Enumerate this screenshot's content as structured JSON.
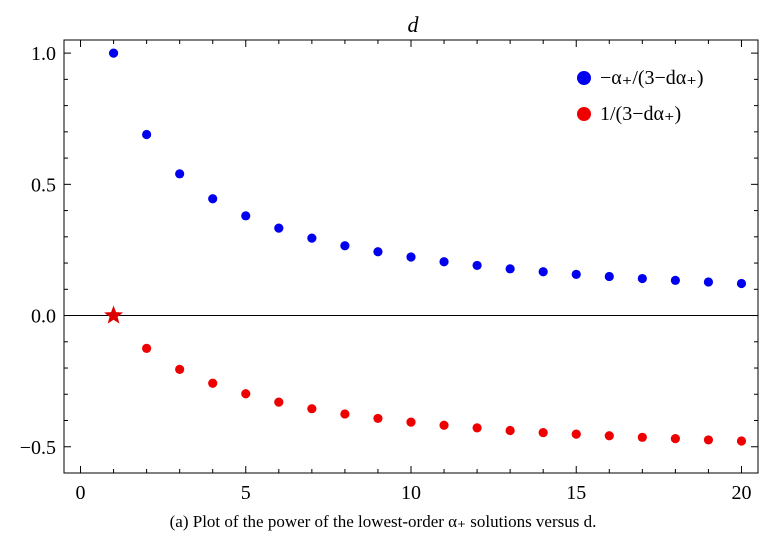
{
  "chart_data": {
    "type": "scatter",
    "title": "",
    "xlabel": "",
    "ylabel": "",
    "top_label": "d",
    "xlim": [
      -0.5,
      20.5
    ],
    "ylim": [
      -0.6,
      1.05
    ],
    "x_ticks": [
      0,
      5,
      10,
      15,
      20
    ],
    "y_ticks": [
      1.0,
      0.5,
      0.0,
      -0.5
    ],
    "y_tick_labels": [
      "1.0",
      "0.5",
      "0.0",
      "−0.5"
    ],
    "grid": false,
    "legend_position": "top-right",
    "series": [
      {
        "name": "−α₊/(3−dα₊)",
        "color": "#0000ee",
        "x": [
          1,
          2,
          3,
          4,
          5,
          6,
          7,
          8,
          9,
          10,
          11,
          12,
          13,
          14,
          15,
          16,
          17,
          18,
          19,
          20
        ],
        "y": [
          1.0,
          0.69,
          0.54,
          0.445,
          0.38,
          0.333,
          0.295,
          0.266,
          0.243,
          0.223,
          0.205,
          0.191,
          0.178,
          0.167,
          0.157,
          0.149,
          0.141,
          0.134,
          0.128,
          0.122
        ]
      },
      {
        "name": "1/(3−dα₊)",
        "color": "#ee0000",
        "x": [
          2,
          3,
          4,
          5,
          6,
          7,
          8,
          9,
          10,
          11,
          12,
          13,
          14,
          15,
          16,
          17,
          18,
          19,
          20
        ],
        "y": [
          -0.125,
          -0.205,
          -0.258,
          -0.298,
          -0.33,
          -0.355,
          -0.375,
          -0.392,
          -0.406,
          -0.418,
          -0.428,
          -0.438,
          -0.446,
          -0.452,
          -0.458,
          -0.464,
          -0.469,
          -0.474,
          -0.478
        ]
      }
    ],
    "annotations": [
      {
        "type": "star",
        "x": 1,
        "y": 0.0,
        "color": "#dd0000"
      }
    ]
  },
  "caption": "(a) Plot of the power of the lowest-order α₊ solutions versus d."
}
